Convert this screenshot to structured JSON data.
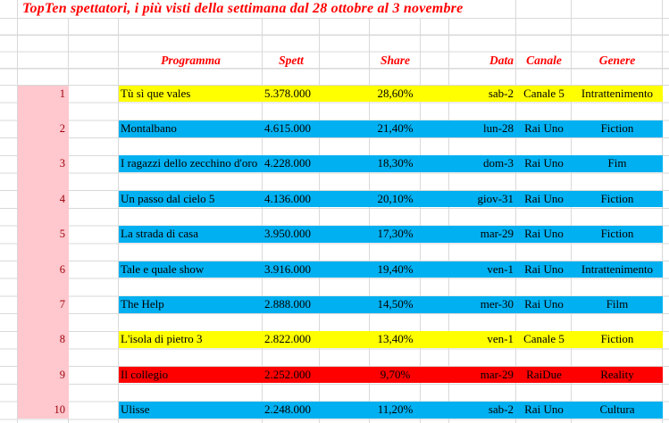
{
  "title": "TopTen spettatori, i più visti della settimana dal 28 ottobre al 3 novembre",
  "columns": {
    "programma": "Programma",
    "spett": "Spett",
    "share": "Share",
    "data": "Data",
    "canale": "Canale",
    "genere": "Genere"
  },
  "rows": [
    {
      "rank": "1",
      "programma": "Tù sì que vales",
      "spett": "5.378.000",
      "share": "28,60%",
      "data": "sab-2",
      "canale": "Canale 5",
      "genere": "Intrattenimento",
      "color": "#FFFF00"
    },
    {
      "rank": "2",
      "programma": "Montalbano",
      "spett": "4.615.000",
      "share": "21,40%",
      "data": "lun-28",
      "canale": "Rai Uno",
      "genere": "Fiction",
      "color": "#00B0F0"
    },
    {
      "rank": "3",
      "programma": "I ragazzi dello zecchino d'oro",
      "spett": "4.228.000",
      "share": "18,30%",
      "data": "dom-3",
      "canale": "Rai Uno",
      "genere": "Fim",
      "color": "#00B0F0"
    },
    {
      "rank": "4",
      "programma": "Un passo dal cielo 5",
      "spett": "4.136.000",
      "share": "20,10%",
      "data": "giov-31",
      "canale": "Rai Uno",
      "genere": "Fiction",
      "color": "#00B0F0"
    },
    {
      "rank": "5",
      "programma": "La strada di casa",
      "spett": "3.950.000",
      "share": "17,30%",
      "data": "mar-29",
      "canale": "Rai Uno",
      "genere": "Fiction",
      "color": "#00B0F0"
    },
    {
      "rank": "6",
      "programma": "Tale e quale show",
      "spett": "3.916.000",
      "share": "19,40%",
      "data": "ven-1",
      "canale": "Rai Uno",
      "genere": "Intrattenimento",
      "color": "#00B0F0"
    },
    {
      "rank": "7",
      "programma": "The Help",
      "spett": "2.888.000",
      "share": "14,50%",
      "data": "mer-30",
      "canale": "Rai Uno",
      "genere": "Film",
      "color": "#00B0F0"
    },
    {
      "rank": "8",
      "programma": "L'isola di pietro 3",
      "spett": "2.822.000",
      "share": "13,40%",
      "data": "ven-1",
      "canale": "Canale 5",
      "genere": "Fiction",
      "color": "#FFFF00"
    },
    {
      "rank": "9",
      "programma": "Il collegio",
      "spett": "2.252.000",
      "share": "9,70%",
      "data": "mar-29",
      "canale": "RaiDue",
      "genere": "Reality",
      "color": "#FF0000"
    },
    {
      "rank": "10",
      "programma": "Ulisse",
      "spett": "2.248.000",
      "share": "11,20%",
      "data": "sab-2",
      "canale": "Rai Uno",
      "genere": "Cultura",
      "color": "#00B0F0"
    }
  ],
  "colors": {
    "band_yellow": "#FFFF00",
    "band_blue": "#00B0F0",
    "band_red": "#FF0000",
    "rank_column_bg": "#FFC7CE",
    "rank_text": "#9C0006",
    "header_text": "#FF0000",
    "title_text": "#FF0000",
    "gridline": "#D9D9D9",
    "cell_text": "#000000"
  }
}
